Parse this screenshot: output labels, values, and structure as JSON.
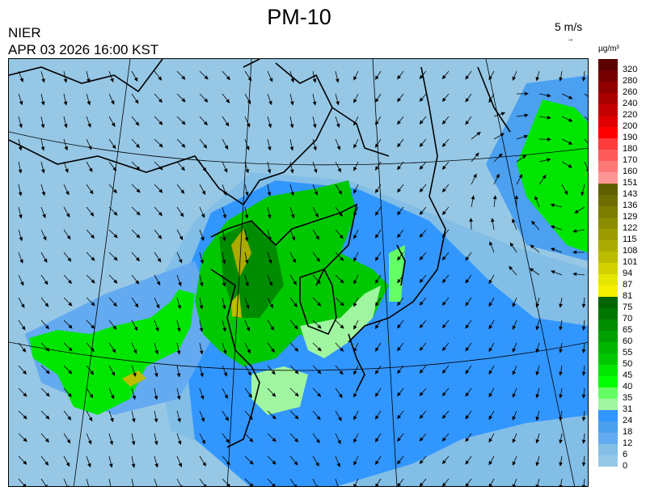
{
  "header": {
    "title": "PM-10",
    "organization": "NIER",
    "timestamp": "APR 03 2026 16:00 KST",
    "wind_scale_label": "5 m/s",
    "wind_scale_arrow": "→"
  },
  "legend": {
    "unit": "µg/m³",
    "bins": [
      {
        "label": "320",
        "color": "#5c0000"
      },
      {
        "label": "280",
        "color": "#760000"
      },
      {
        "label": "260",
        "color": "#900000"
      },
      {
        "label": "240",
        "color": "#aa0000"
      },
      {
        "label": "220",
        "color": "#c40000"
      },
      {
        "label": "200",
        "color": "#de0000"
      },
      {
        "label": "190",
        "color": "#ff0000"
      },
      {
        "label": "180",
        "color": "#ff3c3c"
      },
      {
        "label": "170",
        "color": "#ff5a5a"
      },
      {
        "label": "160",
        "color": "#ff7878"
      },
      {
        "label": "151",
        "color": "#ff9696"
      },
      {
        "label": "143",
        "color": "#5f5f00"
      },
      {
        "label": "136",
        "color": "#6e6e00"
      },
      {
        "label": "129",
        "color": "#7d7d00"
      },
      {
        "label": "122",
        "color": "#8c8c00"
      },
      {
        "label": "115",
        "color": "#9b9b00"
      },
      {
        "label": "108",
        "color": "#aaaa00"
      },
      {
        "label": "101",
        "color": "#bcbc00"
      },
      {
        "label": "94",
        "color": "#d2d200"
      },
      {
        "label": "87",
        "color": "#e6e600"
      },
      {
        "label": "81",
        "color": "#f5f000"
      },
      {
        "label": "75",
        "color": "#006400"
      },
      {
        "label": "70",
        "color": "#007800"
      },
      {
        "label": "65",
        "color": "#008c00"
      },
      {
        "label": "60",
        "color": "#00a000"
      },
      {
        "label": "55",
        "color": "#00b400"
      },
      {
        "label": "50",
        "color": "#00c800"
      },
      {
        "label": "45",
        "color": "#00e600"
      },
      {
        "label": "40",
        "color": "#00ff00"
      },
      {
        "label": "35",
        "color": "#64ff64"
      },
      {
        "label": "31",
        "color": "#a0f5a0"
      },
      {
        "label": "24",
        "color": "#3296ff"
      },
      {
        "label": "18",
        "color": "#4ba0f0"
      },
      {
        "label": "12",
        "color": "#64aaf0"
      },
      {
        "label": "6",
        "color": "#82bee6"
      },
      {
        "label": "0",
        "color": "#96c8e6"
      }
    ]
  }
}
